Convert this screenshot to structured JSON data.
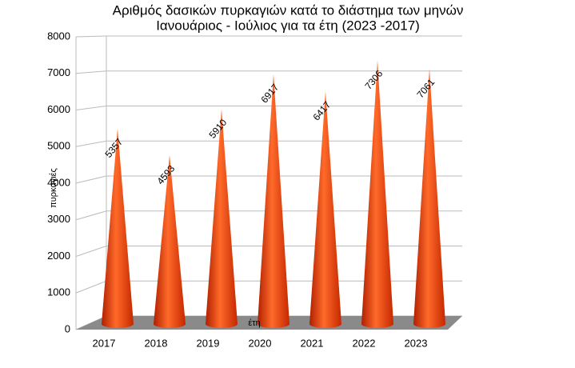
{
  "chart_data": {
    "type": "cone",
    "title": [
      "Αριθμός δασικών πυρκαγιών κατά το διάστημα των μηνών",
      "Ιανουάριος - Ιούλιος για  τα έτη (2023 -2017)"
    ],
    "y_label": "πυρκαγιές",
    "x_label": "έτη",
    "categories": [
      "2017",
      "2018",
      "2019",
      "2020",
      "2021",
      "2022",
      "2023"
    ],
    "values": [
      5357,
      4593,
      5910,
      6917,
      6417,
      7306,
      7061
    ],
    "color": "#ff4a10",
    "ylim": [
      0,
      8000
    ],
    "yticks": [
      0,
      1000,
      2000,
      3000,
      4000,
      5000,
      6000,
      7000,
      8000
    ],
    "grid": true
  }
}
